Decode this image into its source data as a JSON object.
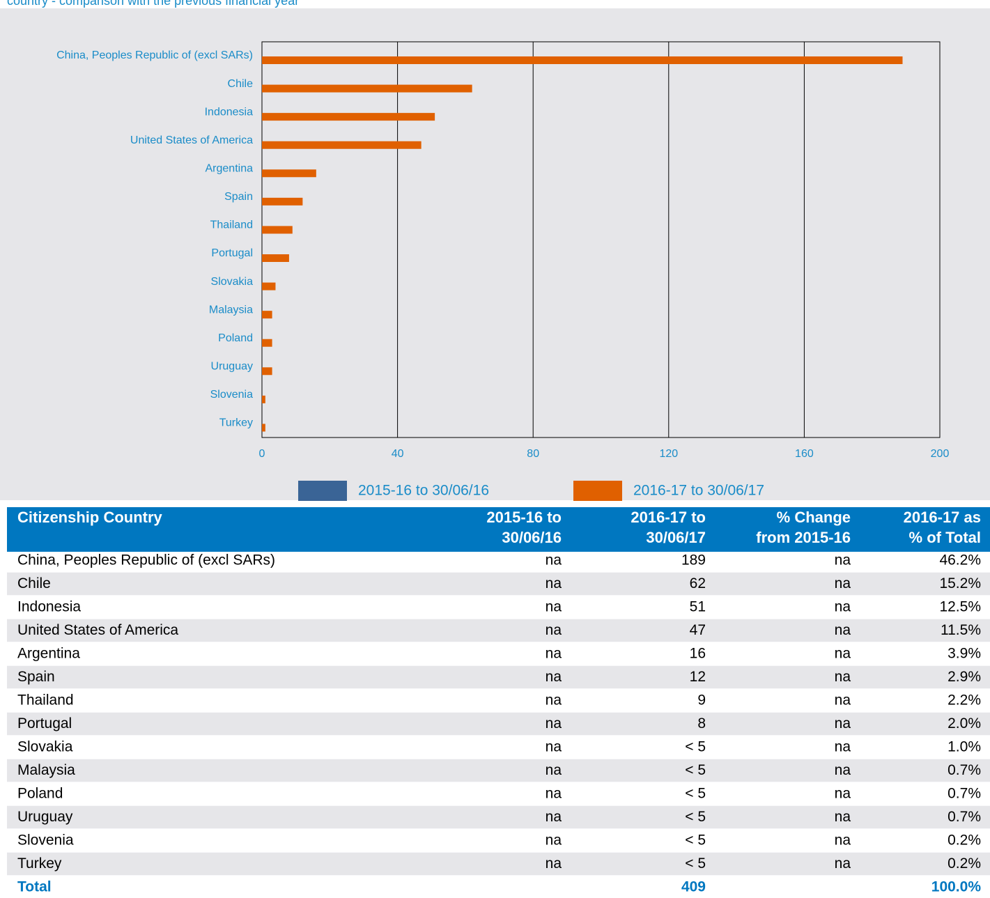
{
  "chart_data": {
    "type": "bar",
    "orientation": "horizontal",
    "title": "country - comparison with the previous financial year",
    "categories": [
      "China, Peoples Republic of (excl SARs)",
      "Chile",
      "Indonesia",
      "United States of America",
      "Argentina",
      "Spain",
      "Thailand",
      "Portugal",
      "Slovakia",
      "Malaysia",
      "Poland",
      "Uruguay",
      "Slovenia",
      "Turkey"
    ],
    "series": [
      {
        "name": "2015-16 to 30/06/16",
        "color": "#3a6496",
        "values": [
          null,
          null,
          null,
          null,
          null,
          null,
          null,
          null,
          null,
          null,
          null,
          null,
          null,
          null
        ]
      },
      {
        "name": "2016-17 to 30/06/17",
        "color": "#e06000",
        "values": [
          189,
          62,
          51,
          47,
          16,
          12,
          9,
          8,
          4,
          3,
          3,
          3,
          1,
          1
        ]
      }
    ],
    "xlim": [
      0,
      200
    ],
    "xticks": [
      0,
      40,
      80,
      120,
      160,
      200
    ],
    "grid": true,
    "legend": "bottom"
  },
  "table": {
    "header": [
      [
        "Citizenship Country"
      ],
      [
        "2015-16 to",
        "30/06/16"
      ],
      [
        "2016-17 to",
        "30/06/17"
      ],
      [
        "% Change",
        "from 2015-16"
      ],
      [
        "2016-17 as",
        "% of Total"
      ]
    ],
    "rows": [
      [
        "China, Peoples Republic of (excl SARs)",
        "na",
        "189",
        "na",
        "46.2%"
      ],
      [
        "Chile",
        "na",
        "62",
        "na",
        "15.2%"
      ],
      [
        "Indonesia",
        "na",
        "51",
        "na",
        "12.5%"
      ],
      [
        "United States of America",
        "na",
        "47",
        "na",
        "11.5%"
      ],
      [
        "Argentina",
        "na",
        "16",
        "na",
        "3.9%"
      ],
      [
        "Spain",
        "na",
        "12",
        "na",
        "2.9%"
      ],
      [
        "Thailand",
        "na",
        "9",
        "na",
        "2.2%"
      ],
      [
        "Portugal",
        "na",
        "8",
        "na",
        "2.0%"
      ],
      [
        "Slovakia",
        "na",
        "< 5",
        "na",
        "1.0%"
      ],
      [
        "Malaysia",
        "na",
        "< 5",
        "na",
        "0.7%"
      ],
      [
        "Poland",
        "na",
        "< 5",
        "na",
        "0.7%"
      ],
      [
        "Uruguay",
        "na",
        "< 5",
        "na",
        "0.7%"
      ],
      [
        "Slovenia",
        "na",
        "< 5",
        "na",
        "0.2%"
      ],
      [
        "Turkey",
        "na",
        "< 5",
        "na",
        "0.2%"
      ]
    ],
    "total": {
      "label": "Total",
      "count": "409",
      "share": "100.0%"
    }
  }
}
